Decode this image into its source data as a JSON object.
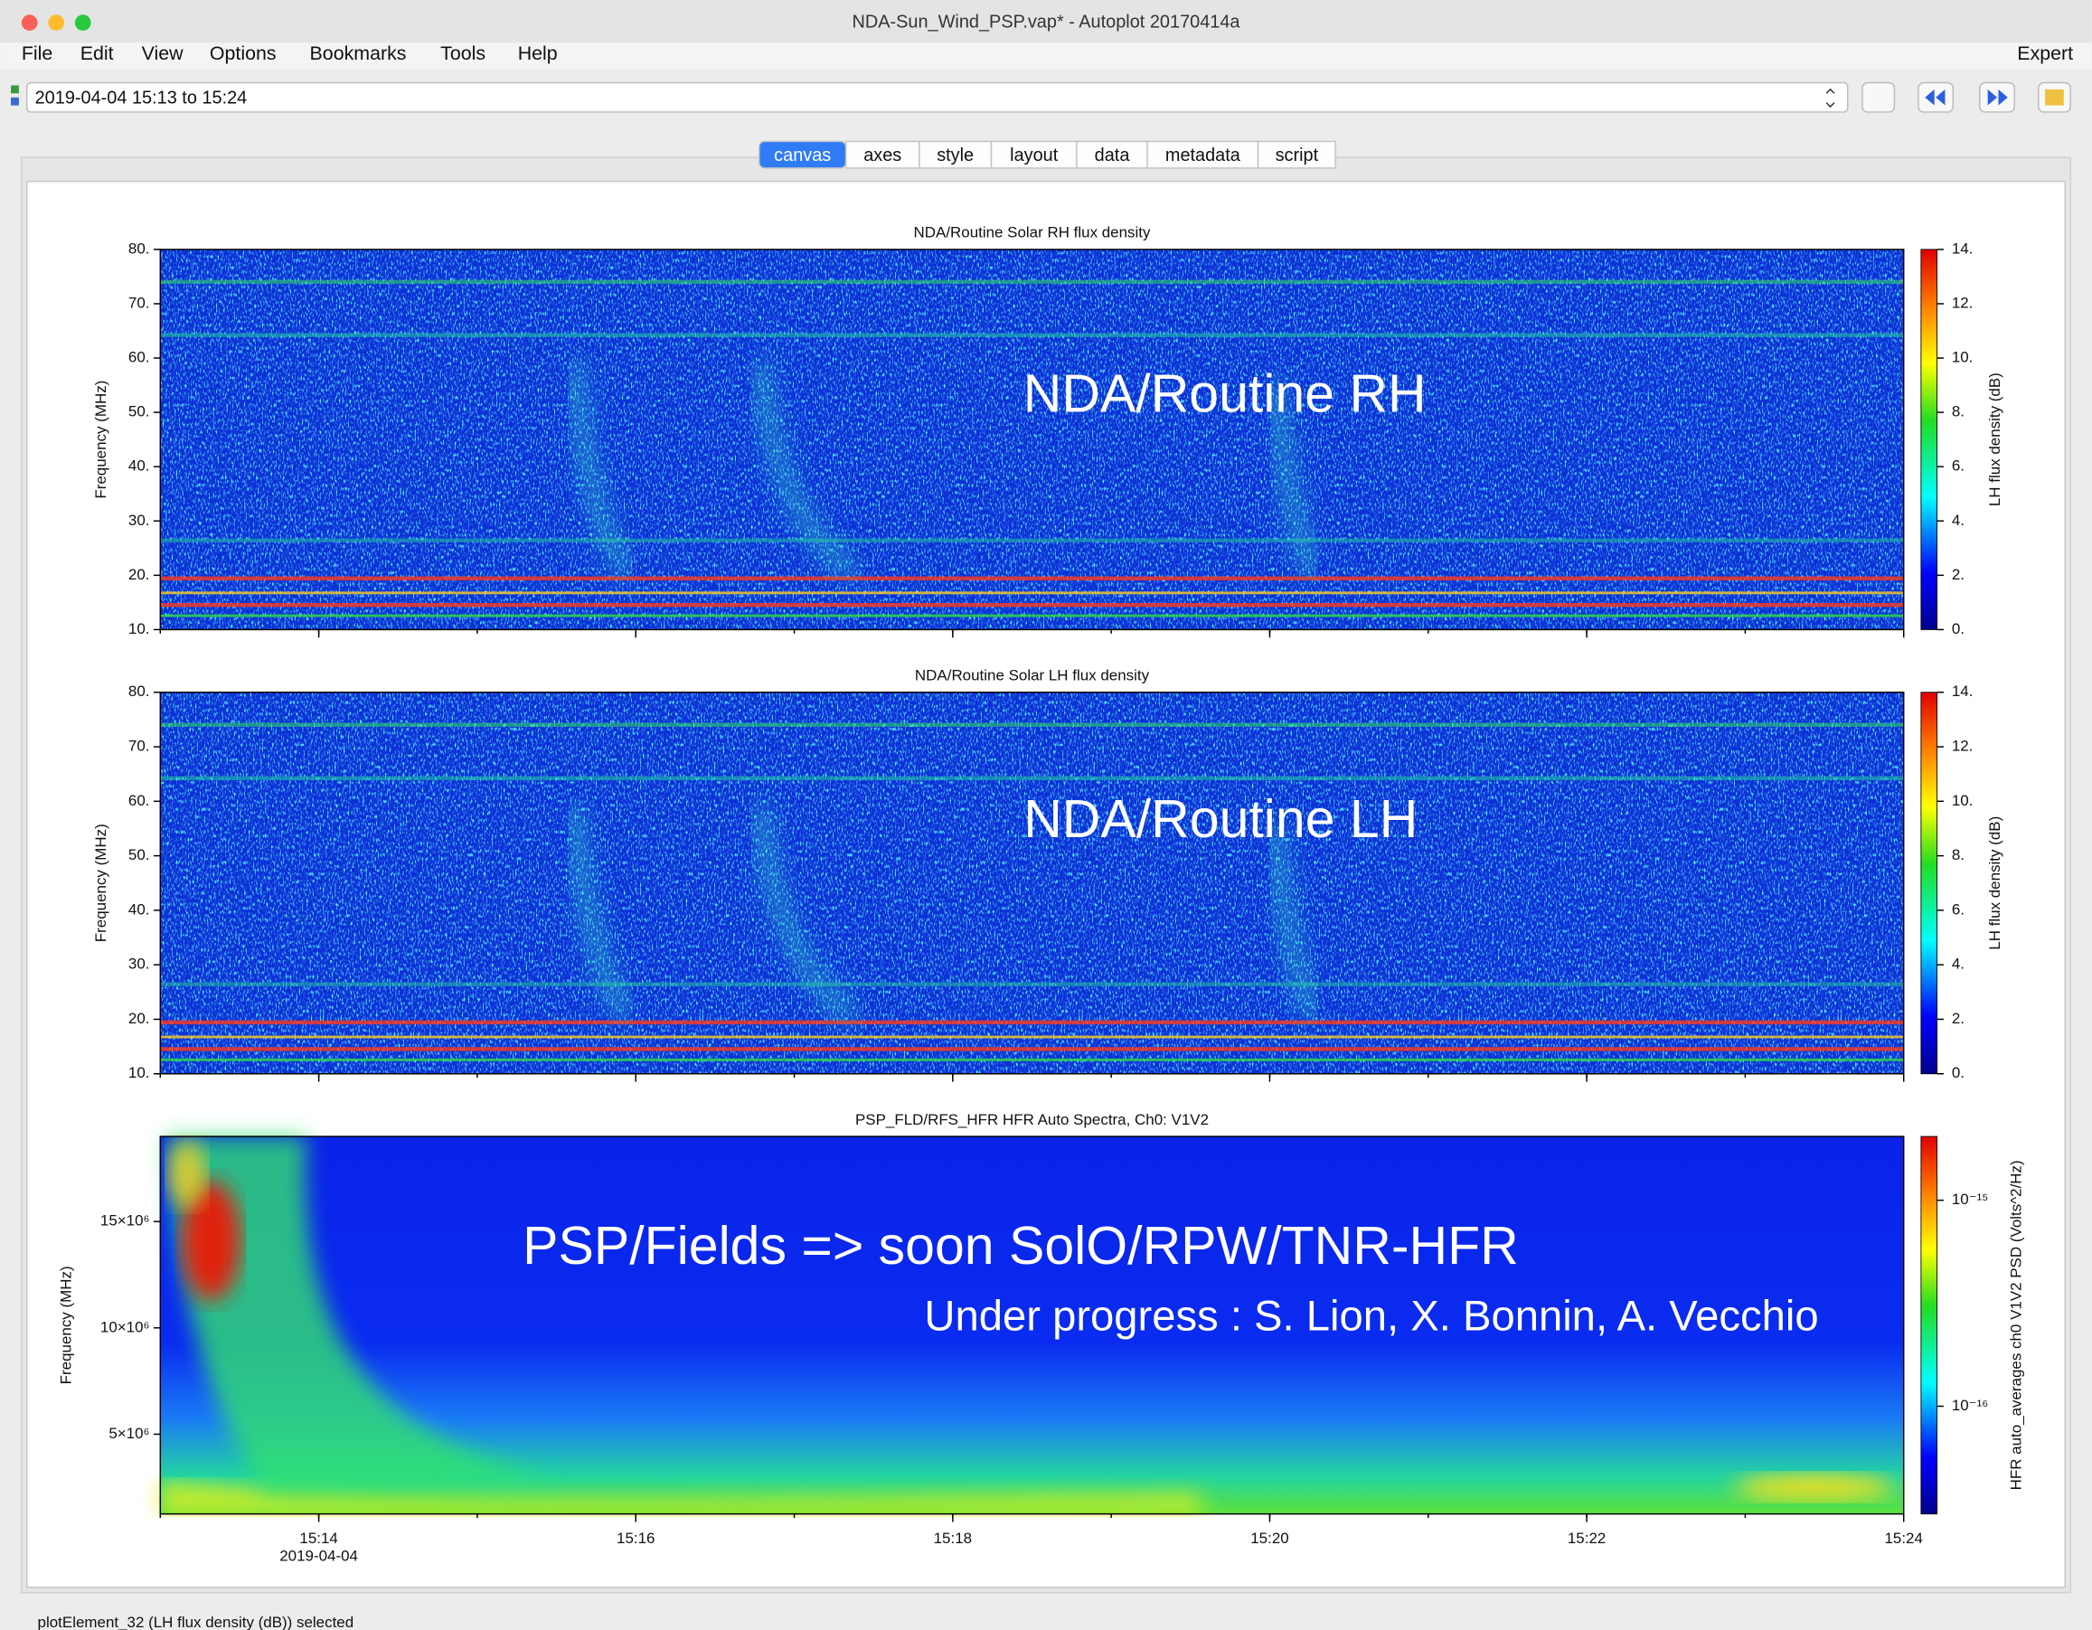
{
  "window": {
    "title": "NDA-Sun_Wind_PSP.vap* - Autoplot 20170414a",
    "menu": [
      "File",
      "Edit",
      "View",
      "Options",
      "Bookmarks",
      "Tools",
      "Help"
    ],
    "menu_right": "Expert"
  },
  "time_range": "2019-04-04 15:13 to 15:24",
  "tabs": [
    "canvas",
    "axes",
    "style",
    "layout",
    "data",
    "metadata",
    "script"
  ],
  "xaxis": {
    "xlim": [
      "15:13",
      "15:24"
    ],
    "xticks": [
      "15:14",
      "15:16",
      "15:18",
      "15:20",
      "15:22",
      "15:24"
    ],
    "date_label": "2019-04-04"
  },
  "plots": [
    {
      "title": "NDA/Routine Solar RH flux density",
      "ylabel": "Frequency (MHz)",
      "ylim": [
        10,
        80
      ],
      "yticks": [
        {
          "value": 10,
          "label": "10."
        },
        {
          "value": 20,
          "label": "20."
        },
        {
          "value": 30,
          "label": "30."
        },
        {
          "value": 40,
          "label": "40."
        },
        {
          "value": 50,
          "label": "50."
        },
        {
          "value": 60,
          "label": "60."
        },
        {
          "value": 70,
          "label": "70."
        },
        {
          "value": 80,
          "label": "80."
        }
      ],
      "zlabel": "LH flux density (dB)",
      "zlim": [
        0,
        14
      ],
      "zticks": [
        {
          "value": 0,
          "label": "0."
        },
        {
          "value": 2,
          "label": "2."
        },
        {
          "value": 4,
          "label": "4."
        },
        {
          "value": 6,
          "label": "6."
        },
        {
          "value": 8,
          "label": "8."
        },
        {
          "value": 10,
          "label": "10."
        },
        {
          "value": 12,
          "label": "12."
        },
        {
          "value": 14,
          "label": "14."
        }
      ],
      "zlog": false,
      "annotations": [
        "NDA/Routine RH"
      ]
    },
    {
      "title": "NDA/Routine Solar LH flux density",
      "ylabel": "Frequency (MHz)",
      "ylim": [
        10,
        80
      ],
      "yticks": [
        {
          "value": 10,
          "label": "10."
        },
        {
          "value": 20,
          "label": "20."
        },
        {
          "value": 30,
          "label": "30."
        },
        {
          "value": 40,
          "label": "40."
        },
        {
          "value": 50,
          "label": "50."
        },
        {
          "value": 60,
          "label": "60."
        },
        {
          "value": 70,
          "label": "70."
        },
        {
          "value": 80,
          "label": "80."
        }
      ],
      "zlabel": "LH flux density (dB)",
      "zlim": [
        0,
        14
      ],
      "zticks": [
        {
          "value": 0,
          "label": "0."
        },
        {
          "value": 2,
          "label": "2."
        },
        {
          "value": 4,
          "label": "4."
        },
        {
          "value": 6,
          "label": "6."
        },
        {
          "value": 8,
          "label": "8."
        },
        {
          "value": 10,
          "label": "10."
        },
        {
          "value": 12,
          "label": "12."
        },
        {
          "value": 14,
          "label": "14."
        }
      ],
      "zlog": false,
      "annotations": [
        "NDA/Routine LH"
      ]
    },
    {
      "title": "PSP_FLD/RFS_HFR  HFR Auto Spectra, Ch0: V1V2",
      "ylabel": "Frequency (MHz)",
      "ylim": [
        1250000,
        19000000
      ],
      "yticks": [
        {
          "value": 5000000,
          "label": "5×10⁶"
        },
        {
          "value": 10000000,
          "label": "10×10⁶"
        },
        {
          "value": 15000000,
          "label": "15×10⁶"
        }
      ],
      "zlabel": "HFR auto_averages ch0 V1V2 PSD (Volts^2/Hz)",
      "zlim": [
        3e-17,
        2.04e-15
      ],
      "zticks": [
        {
          "value": 1e-16,
          "label": "10⁻¹⁶"
        },
        {
          "value": 1e-15,
          "label": "10⁻¹⁵"
        }
      ],
      "zlog": true,
      "annotations": [
        "PSP/Fields => soon SolO/RPW/TNR-HFR",
        "Under progress : S. Lion, X. Bonnin, A. Vecchio"
      ]
    }
  ],
  "status": "plotElement_32 (LH flux density (dB)) selected"
}
